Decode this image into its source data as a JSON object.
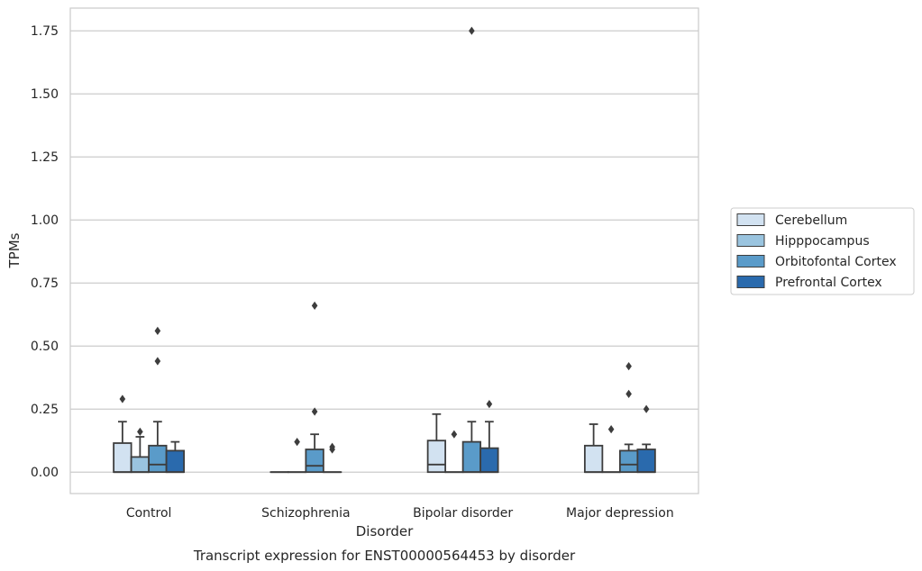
{
  "chart_data": {
    "type": "box",
    "title": "",
    "caption": "Transcript expression for ENST00000564453 by disorder",
    "xlabel": "Disorder",
    "ylabel": "TPMs",
    "ylim": [
      -0.085,
      1.84
    ],
    "yticks": [
      0.0,
      0.25,
      0.5,
      0.75,
      1.0,
      1.25,
      1.5,
      1.75
    ],
    "ytick_labels": [
      "0.00",
      "0.25",
      "0.50",
      "0.75",
      "1.00",
      "1.25",
      "1.50",
      "1.75"
    ],
    "grid": true,
    "legend_position": "right",
    "categories": [
      "Control",
      "Schizophrenia",
      "Bipolar disorder",
      "Major depression"
    ],
    "series": [
      {
        "name": "Cerebellum",
        "color": "#d2e2f1",
        "boxes": [
          {
            "min": 0.0,
            "q1": 0.0,
            "median": 0.0,
            "q3": 0.115,
            "max": 0.2,
            "outliers": [
              0.29
            ]
          },
          {
            "min": 0.0,
            "q1": 0.0,
            "median": 0.0,
            "q3": 0.0,
            "max": 0.0,
            "outliers": []
          },
          {
            "min": 0.0,
            "q1": 0.0,
            "median": 0.03,
            "q3": 0.125,
            "max": 0.23,
            "outliers": []
          },
          {
            "min": 0.0,
            "q1": 0.0,
            "median": 0.0,
            "q3": 0.105,
            "max": 0.19,
            "outliers": []
          }
        ]
      },
      {
        "name": "Hipppocampus",
        "color": "#9ac4df",
        "boxes": [
          {
            "min": 0.0,
            "q1": 0.0,
            "median": 0.0,
            "q3": 0.06,
            "max": 0.14,
            "outliers": [
              0.16
            ]
          },
          {
            "min": 0.0,
            "q1": 0.0,
            "median": 0.0,
            "q3": 0.0,
            "max": 0.0,
            "outliers": [
              0.12
            ]
          },
          {
            "min": 0.0,
            "q1": 0.0,
            "median": 0.0,
            "q3": 0.0,
            "max": 0.0,
            "outliers": [
              0.15
            ]
          },
          {
            "min": 0.0,
            "q1": 0.0,
            "median": 0.0,
            "q3": 0.0,
            "max": 0.0,
            "outliers": [
              0.17
            ]
          }
        ]
      },
      {
        "name": "Orbitofontal Cortex",
        "color": "#5a9bc9",
        "boxes": [
          {
            "min": 0.0,
            "q1": 0.0,
            "median": 0.03,
            "q3": 0.105,
            "max": 0.2,
            "outliers": [
              0.44,
              0.56
            ]
          },
          {
            "min": 0.0,
            "q1": 0.0,
            "median": 0.025,
            "q3": 0.09,
            "max": 0.15,
            "outliers": [
              0.24,
              0.66
            ]
          },
          {
            "min": 0.0,
            "q1": 0.0,
            "median": 0.0,
            "q3": 0.12,
            "max": 0.2,
            "outliers": [
              1.75
            ]
          },
          {
            "min": 0.0,
            "q1": 0.0,
            "median": 0.03,
            "q3": 0.085,
            "max": 0.11,
            "outliers": [
              0.31,
              0.42
            ]
          }
        ]
      },
      {
        "name": "Prefrontal Cortex",
        "color": "#2a6aad",
        "boxes": [
          {
            "min": 0.0,
            "q1": 0.0,
            "median": 0.0,
            "q3": 0.085,
            "max": 0.12,
            "outliers": []
          },
          {
            "min": 0.0,
            "q1": 0.0,
            "median": 0.0,
            "q3": 0.0,
            "max": 0.0,
            "outliers": [
              0.09,
              0.1
            ]
          },
          {
            "min": 0.0,
            "q1": 0.0,
            "median": 0.0,
            "q3": 0.095,
            "max": 0.2,
            "outliers": [
              0.27
            ]
          },
          {
            "min": 0.0,
            "q1": 0.0,
            "median": 0.0,
            "q3": 0.09,
            "max": 0.11,
            "outliers": [
              0.25
            ]
          }
        ]
      }
    ]
  }
}
